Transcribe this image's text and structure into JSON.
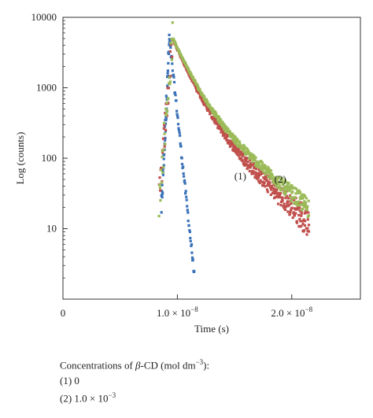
{
  "chart_data": {
    "type": "scatter",
    "title": "",
    "xlabel": "Time (s)",
    "ylabel": "Log (counts)",
    "y_scale": "log",
    "xlim": [
      0,
      2.6e-08
    ],
    "ylim": [
      1,
      10000
    ],
    "x_ticks": [
      {
        "value": 0,
        "label": "0"
      },
      {
        "value": 1e-08,
        "label": "1.0 × 10",
        "exp": "−8"
      },
      {
        "value": 2e-08,
        "label": "2.0 × 10",
        "exp": "−8"
      }
    ],
    "y_ticks": [
      {
        "value": 10,
        "label": "10"
      },
      {
        "value": 100,
        "label": "100"
      },
      {
        "value": 1000,
        "label": "1000"
      },
      {
        "value": 10000,
        "label": "10000"
      }
    ],
    "grid": false,
    "colors": {
      "prompt": "#3b72b8",
      "series1": "#c0504d",
      "series2": "#9bbb59"
    },
    "series": [
      {
        "role": "prompt",
        "color": "#3b72b8",
        "rise": {
          "t0": 8.6e-09,
          "tpeak": 9.3e-09,
          "ypeak": 4800
        },
        "decay": {
          "t_start": 9.3e-09,
          "t_end": 1.15e-08,
          "y_end": 2
        }
      },
      {
        "name": "(1)",
        "color": "#c0504d",
        "rise": {
          "t0": 8.4e-09,
          "tpeak": 9.6e-09,
          "ypeak": 4900
        },
        "decay": {
          "A1": 4200,
          "tau1": 1.1e-09,
          "A2": 650,
          "tau2": 3e-09,
          "t_end": 2.15e-08
        }
      },
      {
        "name": "(2)",
        "color": "#9bbb59",
        "rise": {
          "t0": 8.4e-09,
          "tpeak": 9.6e-09,
          "ypeak": 4900
        },
        "decay": {
          "A1": 4100,
          "tau1": 1.15e-09,
          "A2": 800,
          "tau2": 3.2e-09,
          "t_end": 2.15e-08
        }
      }
    ],
    "annotations": [
      {
        "text": "(1)",
        "x": 1.55e-08,
        "y": 55
      },
      {
        "text": "(2)",
        "x": 1.9e-08,
        "y": 50
      }
    ]
  },
  "caption": {
    "title_pre": "Concentrations of ",
    "title_beta": "β",
    "title_mid": "-CD (mol dm",
    "title_exp": "−3",
    "title_post": "):",
    "line1": "(1) 0",
    "line2_pre": "(2) 1.0 × 10",
    "line2_exp": "−3"
  }
}
